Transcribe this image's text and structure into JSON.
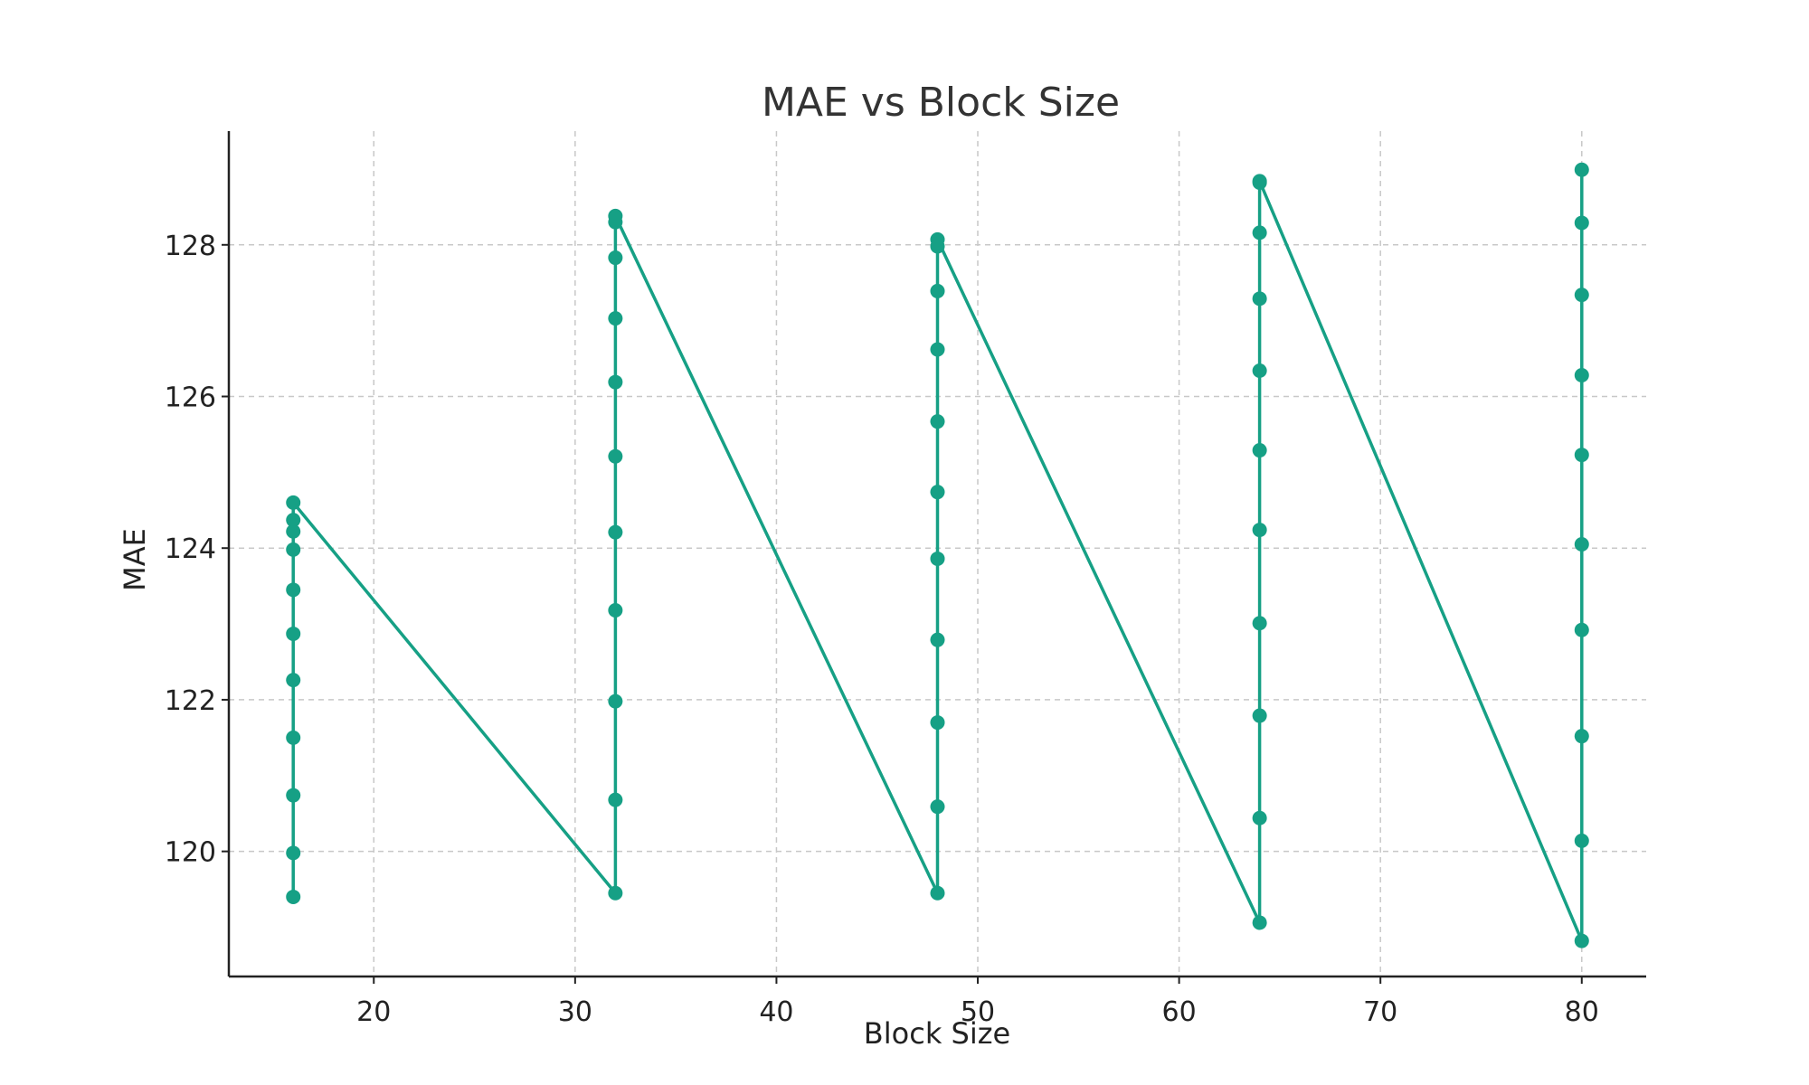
{
  "chart_data": {
    "type": "line",
    "title": "MAE vs Block Size",
    "xlabel": "Block Size",
    "ylabel": "MAE",
    "xlim": [
      12.8,
      83.2
    ],
    "ylim": [
      118.35,
      129.5
    ],
    "xticks": [
      20,
      30,
      40,
      50,
      60,
      70,
      80
    ],
    "yticks": [
      120,
      122,
      124,
      126,
      128
    ],
    "grid": true,
    "series": [
      {
        "color": "#16a085",
        "marker": "circle",
        "points": [
          [
            16,
            119.4
          ],
          [
            16,
            119.98
          ],
          [
            16,
            120.74
          ],
          [
            16,
            121.5
          ],
          [
            16,
            122.26
          ],
          [
            16,
            122.87
          ],
          [
            16,
            123.45
          ],
          [
            16,
            123.98
          ],
          [
            16,
            124.22
          ],
          [
            16,
            124.37
          ],
          [
            16,
            124.6
          ],
          [
            32,
            119.45
          ],
          [
            32,
            120.68
          ],
          [
            32,
            121.98
          ],
          [
            32,
            123.18
          ],
          [
            32,
            124.21
          ],
          [
            32,
            125.21
          ],
          [
            32,
            126.19
          ],
          [
            32,
            127.03
          ],
          [
            32,
            127.83
          ],
          [
            32,
            128.3
          ],
          [
            32,
            128.38
          ],
          [
            48,
            119.45
          ],
          [
            48,
            120.59
          ],
          [
            48,
            121.7
          ],
          [
            48,
            122.79
          ],
          [
            48,
            123.86
          ],
          [
            48,
            124.74
          ],
          [
            48,
            125.67
          ],
          [
            48,
            126.62
          ],
          [
            48,
            127.39
          ],
          [
            48,
            127.98
          ],
          [
            48,
            128.07
          ],
          [
            64,
            119.06
          ],
          [
            64,
            120.44
          ],
          [
            64,
            121.79
          ],
          [
            64,
            123.01
          ],
          [
            64,
            124.24
          ],
          [
            64,
            125.29
          ],
          [
            64,
            126.34
          ],
          [
            64,
            127.29
          ],
          [
            64,
            128.16
          ],
          [
            64,
            128.82
          ],
          [
            64,
            128.84
          ],
          [
            80,
            118.82
          ],
          [
            80,
            120.14
          ],
          [
            80,
            121.52
          ],
          [
            80,
            122.92
          ],
          [
            80,
            124.05
          ],
          [
            80,
            125.23
          ],
          [
            80,
            126.28
          ],
          [
            80,
            127.34
          ],
          [
            80,
            128.29
          ],
          [
            80,
            128.99
          ]
        ]
      }
    ]
  }
}
